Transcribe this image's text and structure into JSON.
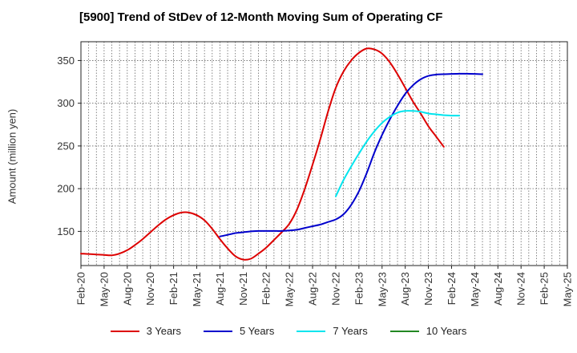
{
  "chart_data": {
    "type": "line",
    "title": "[5900]  Trend of StDev of 12-Month Moving Sum of Operating CF",
    "xlabel": "",
    "ylabel": "Amount (million yen)",
    "ylim": [
      110,
      372
    ],
    "yticks": [
      150,
      200,
      250,
      300,
      350
    ],
    "xticks": [
      "Feb-20",
      "May-20",
      "Aug-20",
      "Nov-20",
      "Feb-21",
      "May-21",
      "Aug-21",
      "Nov-21",
      "Feb-22",
      "May-22",
      "Aug-22",
      "Nov-22",
      "Feb-23",
      "May-23",
      "Aug-23",
      "Nov-23",
      "Feb-24",
      "May-24",
      "Aug-24",
      "Nov-24",
      "Feb-25",
      "May-25"
    ],
    "grid": true,
    "legend_position": "bottom",
    "series": [
      {
        "name": "3 Years",
        "color": "#dd0000",
        "points": [
          [
            0,
            124
          ],
          [
            1,
            123.5
          ],
          [
            2,
            123
          ],
          [
            3,
            122.5
          ],
          [
            4,
            122
          ],
          [
            5,
            124
          ],
          [
            6,
            128
          ],
          [
            7,
            134
          ],
          [
            8,
            141
          ],
          [
            9,
            149
          ],
          [
            10,
            157
          ],
          [
            11,
            164
          ],
          [
            12,
            169
          ],
          [
            13,
            172
          ],
          [
            14,
            172
          ],
          [
            15,
            169
          ],
          [
            16,
            163
          ],
          [
            17,
            153
          ],
          [
            18,
            141
          ],
          [
            19,
            130
          ],
          [
            20,
            121
          ],
          [
            21,
            117
          ],
          [
            22,
            118
          ],
          [
            23,
            124
          ],
          [
            24,
            131
          ],
          [
            25,
            140
          ],
          [
            26,
            149
          ],
          [
            27,
            159
          ],
          [
            28,
            176
          ],
          [
            29,
            200
          ],
          [
            30,
            228
          ],
          [
            31,
            258
          ],
          [
            32,
            290
          ],
          [
            33,
            318
          ],
          [
            34,
            337
          ],
          [
            35,
            350
          ],
          [
            36,
            359
          ],
          [
            37,
            364
          ],
          [
            38,
            363
          ],
          [
            39,
            358
          ],
          [
            40,
            348
          ],
          [
            41,
            334
          ],
          [
            42,
            318
          ],
          [
            43,
            302
          ],
          [
            44,
            288
          ],
          [
            45,
            273
          ],
          [
            46,
            261
          ],
          [
            47,
            249
          ]
        ]
      },
      {
        "name": "5 Years",
        "color": "#0000cc",
        "points": [
          [
            18,
            144
          ],
          [
            19,
            146
          ],
          [
            20,
            148
          ],
          [
            21,
            149
          ],
          [
            22,
            150
          ],
          [
            23,
            150.5
          ],
          [
            24,
            150.5
          ],
          [
            25,
            150.5
          ],
          [
            26,
            150.5
          ],
          [
            27,
            151
          ],
          [
            28,
            152
          ],
          [
            29,
            154
          ],
          [
            30,
            156
          ],
          [
            31,
            158
          ],
          [
            32,
            161
          ],
          [
            33,
            164
          ],
          [
            34,
            170
          ],
          [
            35,
            181
          ],
          [
            36,
            197
          ],
          [
            37,
            218
          ],
          [
            38,
            242
          ],
          [
            39,
            263
          ],
          [
            40,
            281
          ],
          [
            41,
            297
          ],
          [
            42,
            311
          ],
          [
            43,
            321
          ],
          [
            44,
            328
          ],
          [
            45,
            332
          ],
          [
            46,
            333.5
          ],
          [
            47,
            334
          ],
          [
            48,
            334.3
          ],
          [
            49,
            334.5
          ],
          [
            50,
            334.5
          ],
          [
            51,
            334.3
          ],
          [
            52,
            334
          ]
        ]
      },
      {
        "name": "7 Years",
        "color": "#00e5ee",
        "points": [
          [
            33,
            191
          ],
          [
            34,
            210
          ],
          [
            35,
            226
          ],
          [
            36,
            241
          ],
          [
            37,
            255
          ],
          [
            38,
            267
          ],
          [
            39,
            277
          ],
          [
            40,
            284
          ],
          [
            41,
            289
          ],
          [
            42,
            291
          ],
          [
            43,
            291
          ],
          [
            44,
            290
          ],
          [
            45,
            288
          ],
          [
            46,
            287
          ],
          [
            47,
            286
          ],
          [
            48,
            285.5
          ],
          [
            49,
            285.5
          ]
        ]
      },
      {
        "name": "10 Years",
        "color": "#228822",
        "points": []
      }
    ]
  }
}
